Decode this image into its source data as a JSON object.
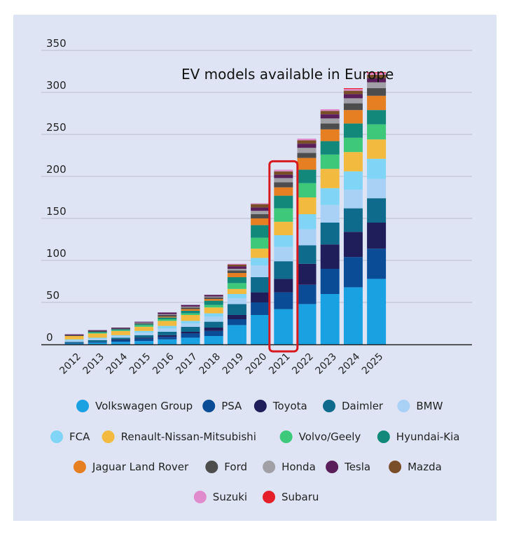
{
  "chart_data": {
    "type": "bar",
    "stacked": true,
    "title": "EV models available in Europe",
    "xlabel": "",
    "ylabel": "",
    "ylim": [
      0,
      350
    ],
    "yticks": [
      0,
      50,
      100,
      150,
      200,
      250,
      300,
      350
    ],
    "grid": true,
    "legend_position": "bottom",
    "highlighted_category": "2021",
    "highlight_color": "#d7191f",
    "categories": [
      "2012",
      "2013",
      "2014",
      "2015",
      "2016",
      "2017",
      "2018",
      "2019",
      "2020",
      "2021",
      "2022",
      "2023",
      "2024",
      "2025"
    ],
    "series": [
      {
        "name": "Volkswagen Group",
        "color": "#1aa1e2",
        "values": [
          1,
          2,
          3,
          4,
          6,
          8,
          10,
          23,
          35,
          42,
          48,
          60,
          68,
          78
        ]
      },
      {
        "name": "PSA",
        "color": "#0b4c96",
        "values": [
          1,
          1,
          2,
          3,
          3,
          5,
          6,
          7,
          15,
          20,
          23,
          30,
          36,
          36
        ]
      },
      {
        "name": "Toyota",
        "color": "#1f1e5a",
        "values": [
          0,
          0,
          1,
          1,
          2,
          2,
          4,
          5,
          12,
          16,
          25,
          29,
          30,
          31
        ]
      },
      {
        "name": "Daimler",
        "color": "#0f6b8c",
        "values": [
          1,
          2,
          2,
          3,
          4,
          6,
          7,
          13,
          18,
          21,
          22,
          26,
          28,
          29
        ]
      },
      {
        "name": "BMW",
        "color": "#a9d0f5",
        "values": [
          2,
          2,
          2,
          3,
          4,
          4,
          6,
          7,
          14,
          17,
          19,
          21,
          22,
          23
        ]
      },
      {
        "name": "FCA",
        "color": "#80d4f5",
        "values": [
          1,
          1,
          1,
          2,
          3,
          3,
          4,
          5,
          9,
          14,
          18,
          20,
          22,
          24
        ]
      },
      {
        "name": "Renault-Nissan-Mitsubishi",
        "color": "#f2bb40",
        "values": [
          4,
          5,
          5,
          5,
          6,
          7,
          7,
          6,
          11,
          16,
          20,
          23,
          23,
          23
        ]
      },
      {
        "name": "Volvo/Geely",
        "color": "#3ec87a",
        "values": [
          0,
          1,
          1,
          2,
          2,
          2,
          3,
          7,
          13,
          16,
          17,
          17,
          17,
          18
        ]
      },
      {
        "name": "Hyundai-Kia",
        "color": "#12887a",
        "values": [
          0,
          1,
          1,
          1,
          2,
          3,
          5,
          7,
          15,
          15,
          16,
          16,
          17,
          17
        ]
      },
      {
        "name": "Jaguar Land Rover",
        "color": "#e67f22",
        "values": [
          0,
          0,
          0,
          0,
          1,
          2,
          2,
          5,
          8,
          10,
          14,
          14,
          16,
          17
        ]
      },
      {
        "name": "Ford",
        "color": "#4d4d4d",
        "values": [
          1,
          1,
          1,
          1,
          2,
          2,
          2,
          3,
          5,
          6,
          6,
          7,
          8,
          9
        ]
      },
      {
        "name": "Honda",
        "color": "#a0a0a6",
        "values": [
          0,
          0,
          0,
          1,
          1,
          1,
          1,
          2,
          4,
          5,
          6,
          6,
          6,
          7
        ]
      },
      {
        "name": "Tesla",
        "color": "#5a1f5a",
        "values": [
          1,
          1,
          1,
          1,
          2,
          2,
          2,
          3,
          4,
          4,
          5,
          5,
          5,
          5
        ]
      },
      {
        "name": "Mazda",
        "color": "#7a4e28",
        "values": [
          0,
          0,
          0,
          0,
          0,
          0,
          0,
          2,
          4,
          4,
          4,
          4,
          4,
          4
        ]
      },
      {
        "name": "Suzuki",
        "color": "#e08ccc",
        "values": [
          0,
          0,
          0,
          0,
          0,
          0,
          0,
          1,
          1,
          2,
          2,
          2,
          2,
          2
        ]
      },
      {
        "name": "Subaru",
        "color": "#e5202a",
        "values": [
          0,
          0,
          0,
          0,
          0,
          0,
          0,
          0,
          0,
          0,
          0,
          0,
          1,
          1
        ]
      }
    ]
  }
}
